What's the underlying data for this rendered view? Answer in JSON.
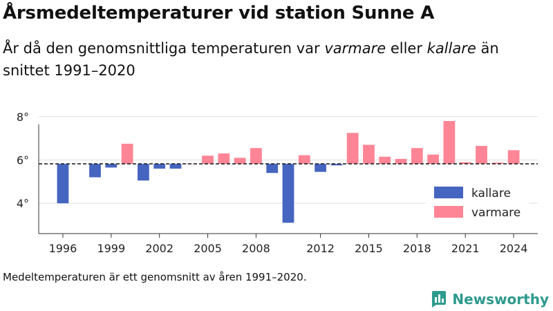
{
  "header": {
    "title": "Årsmedeltemperaturer vid station Sunne A",
    "subtitle_pre": "År då den genomsnittliga temperaturen var ",
    "subtitle_warm": "varmare",
    "subtitle_mid": " eller ",
    "subtitle_cold": "kallare",
    "subtitle_post": " än snittet 1991–2020"
  },
  "footnote": "Medeltemperaturen är ett genomsnitt av åren 1991–2020.",
  "brand": {
    "name": "Newsworthy",
    "icon": "newsworthy-logo-icon",
    "color": "#2e9a8e"
  },
  "colors": {
    "cold": "#4565c0",
    "warm": "#fe8595",
    "baseline": "#222222",
    "grid": "#dddddd"
  },
  "chart_data": {
    "type": "bar",
    "baseline": 5.82,
    "ylim": [
      2.6,
      8.6
    ],
    "xlim": [
      1994.5,
      2025.5
    ],
    "y_ticks": [
      4,
      6,
      8
    ],
    "y_tick_labels": [
      "4°",
      "6°",
      "8°"
    ],
    "x_ticks": [
      1996,
      1999,
      2002,
      2005,
      2008,
      2012,
      2015,
      2018,
      2021,
      2024
    ],
    "x_tick_labels": [
      "1996",
      "1999",
      "2002",
      "2005",
      "2008",
      "2012",
      "2015",
      "2018",
      "2021",
      "2024"
    ],
    "legend_position": "bottom-right",
    "series": [
      {
        "name": "kallare",
        "color": "#4565c0"
      },
      {
        "name": "varmare",
        "color": "#fe8595"
      }
    ],
    "years": [
      1996,
      1998,
      1999,
      2000,
      2001,
      2002,
      2003,
      2004,
      2005,
      2006,
      2007,
      2008,
      2009,
      2010,
      2011,
      2012,
      2013,
      2014,
      2015,
      2016,
      2017,
      2018,
      2019,
      2020,
      2021,
      2022,
      2023,
      2024
    ],
    "values": [
      4.0,
      5.2,
      5.65,
      6.75,
      5.05,
      5.6,
      5.6,
      5.82,
      6.2,
      6.3,
      6.1,
      6.55,
      5.4,
      3.1,
      6.22,
      5.45,
      5.75,
      7.25,
      6.7,
      6.15,
      6.05,
      6.55,
      6.25,
      7.8,
      5.9,
      6.65,
      5.88,
      6.45
    ]
  }
}
